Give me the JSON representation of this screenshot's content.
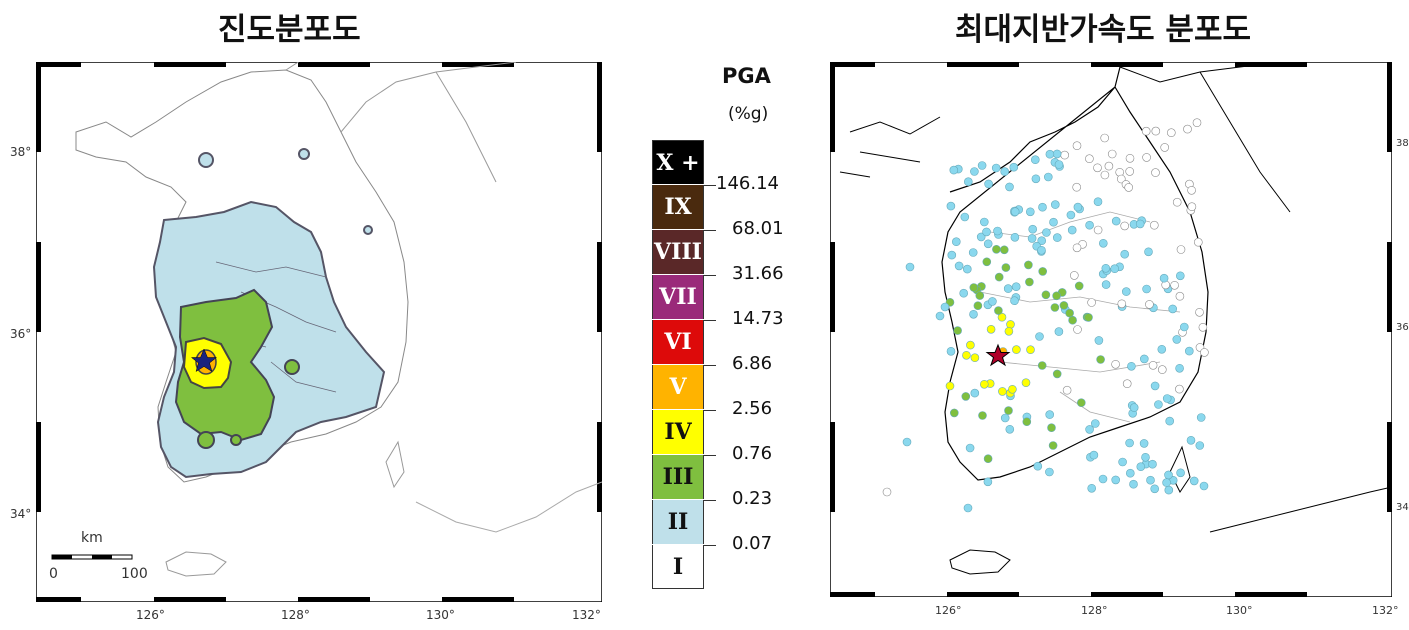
{
  "left_title": "진도분포도",
  "right_title": "최대지반가속도 분포도",
  "legend": {
    "header": "PGA",
    "unit": "(%g)",
    "classes": [
      {
        "label": "X +",
        "color": "#000000",
        "text_color": "#ffffff"
      },
      {
        "label": "IX",
        "color": "#4a2a0e",
        "text_color": "#ffffff"
      },
      {
        "label": "VIII",
        "color": "#5a2828",
        "text_color": "#ffffff"
      },
      {
        "label": "VII",
        "color": "#9a2a7a",
        "text_color": "#ffffff"
      },
      {
        "label": "VI",
        "color": "#dd0a0a",
        "text_color": "#ffffff"
      },
      {
        "label": "V",
        "color": "#ffb300",
        "text_color": "#ffffff"
      },
      {
        "label": "IV",
        "color": "#ffff00",
        "text_color": "#111111"
      },
      {
        "label": "III",
        "color": "#7fbf3f",
        "text_color": "#111111"
      },
      {
        "label": "II",
        "color": "#bfe0ea",
        "text_color": "#111111"
      },
      {
        "label": "I",
        "color": "#ffffff",
        "text_color": "#111111"
      }
    ],
    "thresholds": [
      "146.14",
      "68.01",
      "31.66",
      "14.73",
      "6.86",
      "2.56",
      "0.76",
      "0.23",
      "0.07"
    ]
  },
  "left_map": {
    "lat_labels": [
      "38°",
      "36°",
      "34°"
    ],
    "lon_labels": [
      "126°",
      "128°",
      "130°",
      "132°"
    ],
    "scale_unit": "km",
    "scale_start": "0",
    "scale_end": "100"
  },
  "right_map": {
    "lat_labels": [
      "38",
      "36",
      "34"
    ],
    "lon_labels": [
      "126°",
      "128°",
      "130°",
      "132°"
    ]
  },
  "colors": {
    "intensity_II": "#bfe0ea",
    "intensity_III": "#7fbf3f",
    "intensity_IV": "#ffff00",
    "intensity_V": "#ffb300",
    "epicenter_star": "#1a237e"
  }
}
